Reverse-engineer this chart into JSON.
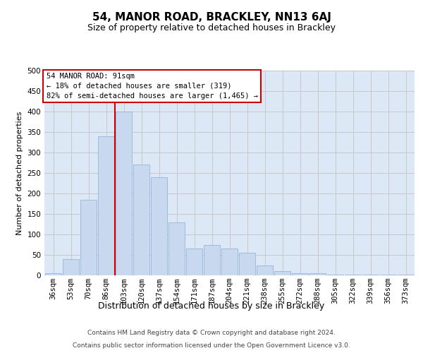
{
  "title": "54, MANOR ROAD, BRACKLEY, NN13 6AJ",
  "subtitle": "Size of property relative to detached houses in Brackley",
  "xlabel": "Distribution of detached houses by size in Brackley",
  "ylabel": "Number of detached properties",
  "footer_line1": "Contains HM Land Registry data © Crown copyright and database right 2024.",
  "footer_line2": "Contains public sector information licensed under the Open Government Licence v3.0.",
  "annotation_title": "54 MANOR ROAD: 91sqm",
  "annotation_line1": "← 18% of detached houses are smaller (319)",
  "annotation_line2": "82% of semi-detached houses are larger (1,465) →",
  "bar_labels": [
    "36sqm",
    "53sqm",
    "70sqm",
    "86sqm",
    "103sqm",
    "120sqm",
    "137sqm",
    "154sqm",
    "171sqm",
    "187sqm",
    "204sqm",
    "221sqm",
    "238sqm",
    "255sqm",
    "272sqm",
    "288sqm",
    "305sqm",
    "322sqm",
    "339sqm",
    "356sqm",
    "373sqm"
  ],
  "bar_values": [
    5,
    40,
    185,
    340,
    400,
    270,
    240,
    130,
    65,
    75,
    65,
    55,
    25,
    10,
    5,
    5,
    2,
    2,
    1,
    1,
    2
  ],
  "bar_color": "#c8d8ee",
  "bar_edge_color": "#8aadd4",
  "vline_color": "#cc0000",
  "vline_x_index": 3.5,
  "ylim_max": 500,
  "yticks": [
    0,
    50,
    100,
    150,
    200,
    250,
    300,
    350,
    400,
    450,
    500
  ],
  "grid_color": "#c8c8c8",
  "bg_color": "#dce8f5",
  "annotation_box_facecolor": "#ffffff",
  "annotation_box_edgecolor": "#cc0000",
  "title_fontsize": 11,
  "subtitle_fontsize": 9,
  "ylabel_fontsize": 8,
  "xlabel_fontsize": 9,
  "tick_fontsize": 7.5,
  "annot_fontsize": 7.5,
  "footer_fontsize": 6.5
}
